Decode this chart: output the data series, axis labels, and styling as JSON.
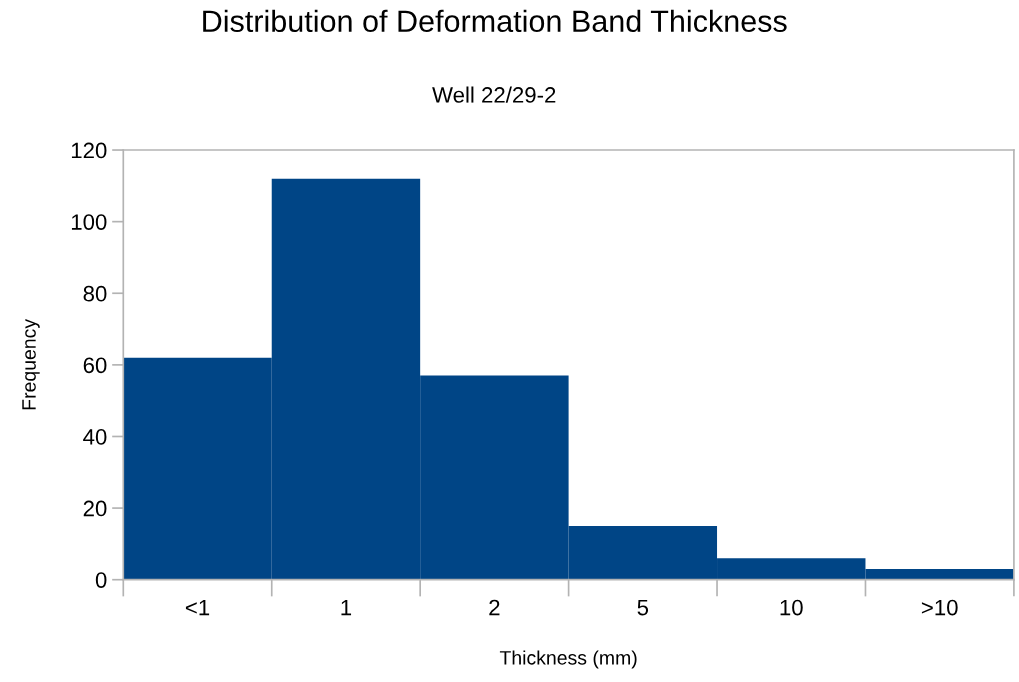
{
  "chart_data": {
    "type": "bar",
    "title": "Distribution of Deformation Band Thickness",
    "subtitle": "Well 22/29-2",
    "xlabel": "Thickness (mm)",
    "ylabel": "Frequency",
    "categories": [
      "<1",
      "1",
      "2",
      "5",
      "10",
      ">10"
    ],
    "values": [
      62,
      112,
      57,
      15,
      6,
      3
    ],
    "color": "#004586",
    "ylim": [
      0,
      120
    ],
    "yticks": [
      0,
      20,
      40,
      60,
      80,
      100,
      120
    ],
    "grid": false,
    "legend": false
  }
}
